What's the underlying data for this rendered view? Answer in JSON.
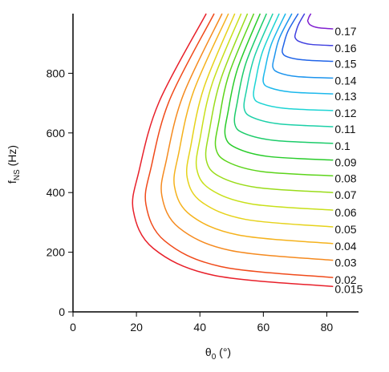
{
  "chart_data": {
    "type": "contour",
    "xlabel": {
      "main": "θ",
      "sub": "0",
      "rest": " (°)"
    },
    "ylabel": {
      "main": "f",
      "sub": "NS",
      "rest": " (Hz)"
    },
    "xlim": [
      0,
      90
    ],
    "ylim": [
      0,
      1000
    ],
    "xticks": [
      0,
      20,
      40,
      60,
      80
    ],
    "yticks": [
      0,
      200,
      400,
      600,
      800
    ],
    "series": [
      {
        "name": "0.015",
        "color": "#e8202a",
        "x": [
          42,
          27.1,
          20.8,
          19,
          25.3,
          44.2,
          82
        ],
        "values": [
          1000,
          703,
          472,
          340,
          213,
          123,
          85
        ]
      },
      {
        "name": "0.02",
        "color": "#f04a1a",
        "x": [
          44.5,
          30.5,
          24.7,
          23,
          28.9,
          46.6,
          82
        ],
        "values": [
          1000,
          712,
          488,
          360,
          238,
          152,
          115
        ]
      },
      {
        "name": "0.03",
        "color": "#f58a1f",
        "x": [
          47,
          34.7,
          29.5,
          28,
          33.4,
          49.6,
          82
        ],
        "values": [
          1000,
          726,
          512,
          390,
          282,
          206,
          173
        ]
      },
      {
        "name": "0.04",
        "color": "#f5b21c",
        "x": [
          49,
          38,
          33.4,
          32,
          37,
          52,
          82
        ],
        "values": [
          1000,
          739,
          536,
          420,
          325,
          258,
          229
        ]
      },
      {
        "name": "0.05",
        "color": "#e6d21a",
        "x": [
          51,
          41.3,
          37.2,
          36,
          40.6,
          54.4,
          82
        ],
        "values": [
          1000,
          753,
          560,
          450,
          368,
          310,
          285
        ]
      },
      {
        "name": "0.06",
        "color": "#c8e01a",
        "x": [
          53,
          43.9,
          40.1,
          39,
          43.3,
          56.2,
          82
        ],
        "values": [
          1000,
          766,
          584,
          480,
          411,
          362,
          341
        ]
      },
      {
        "name": "0.07",
        "color": "#9adc1a",
        "x": [
          55,
          46.6,
          43,
          42,
          46,
          58,
          82
        ],
        "values": [
          1000,
          780,
          608,
          510,
          455,
          417,
          400
        ]
      },
      {
        "name": "0.08",
        "color": "#5cd41a",
        "x": [
          57,
          49.2,
          46,
          45,
          48.7,
          59.8,
          82
        ],
        "values": [
          1000,
          798,
          640,
          550,
          503,
          470,
          456
        ]
      },
      {
        "name": "0.09",
        "color": "#28cc2a",
        "x": [
          59,
          51.9,
          48.9,
          48,
          51.4,
          61.6,
          82
        ],
        "values": [
          1000,
          816,
          672,
          590,
          550,
          521,
          509
        ]
      },
      {
        "name": "0.1",
        "color": "#1ccc6a",
        "x": [
          61,
          54.5,
          51.8,
          51,
          54.1,
          63.4,
          82
        ],
        "values": [
          1000,
          834,
          704,
          630,
          598,
          575,
          565
        ]
      },
      {
        "name": "0.11",
        "color": "#1cd0a8",
        "x": [
          63,
          57.2,
          54.7,
          54,
          56.8,
          65.2,
          82
        ],
        "values": [
          1000,
          856,
          744,
          680,
          651,
          630,
          621
        ]
      },
      {
        "name": "0.12",
        "color": "#1cd4d4",
        "x": [
          65,
          59.8,
          57.6,
          57,
          59.5,
          67,
          82
        ],
        "values": [
          1000,
          874,
          776,
          720,
          698,
          682,
          675
        ]
      },
      {
        "name": "0.13",
        "color": "#1cb8ec",
        "x": [
          67,
          62.5,
          60.6,
          60,
          62.2,
          68.8,
          82
        ],
        "values": [
          1000,
          897,
          816,
          770,
          751,
          737,
          731
        ]
      },
      {
        "name": "0.14",
        "color": "#1c94ee",
        "x": [
          69,
          65.1,
          63.5,
          63,
          64.9,
          70.6,
          82
        ],
        "values": [
          1000,
          919,
          856,
          820,
          802,
          789,
          784
        ]
      },
      {
        "name": "0.15",
        "color": "#2064e8",
        "x": [
          71,
          67.8,
          66.4,
          66,
          67.6,
          72.4,
          82
        ],
        "values": [
          1000,
          942,
          896,
          870,
          855,
          845,
          840
        ]
      },
      {
        "name": "0.16",
        "color": "#4040e0",
        "x": [
          73,
          71.1,
          70.2,
          70,
          71.2,
          74.8,
          82
        ],
        "values": [
          1000,
          964,
          936,
          920,
          907,
          897,
          893
        ]
      },
      {
        "name": "0.17",
        "color": "#8020d0",
        "x": [
          75,
          74.4,
          74.1,
          74,
          74.8,
          77.2,
          82
        ],
        "values": [
          1000,
          989,
          980,
          975,
          962,
          953,
          949
        ]
      }
    ]
  }
}
